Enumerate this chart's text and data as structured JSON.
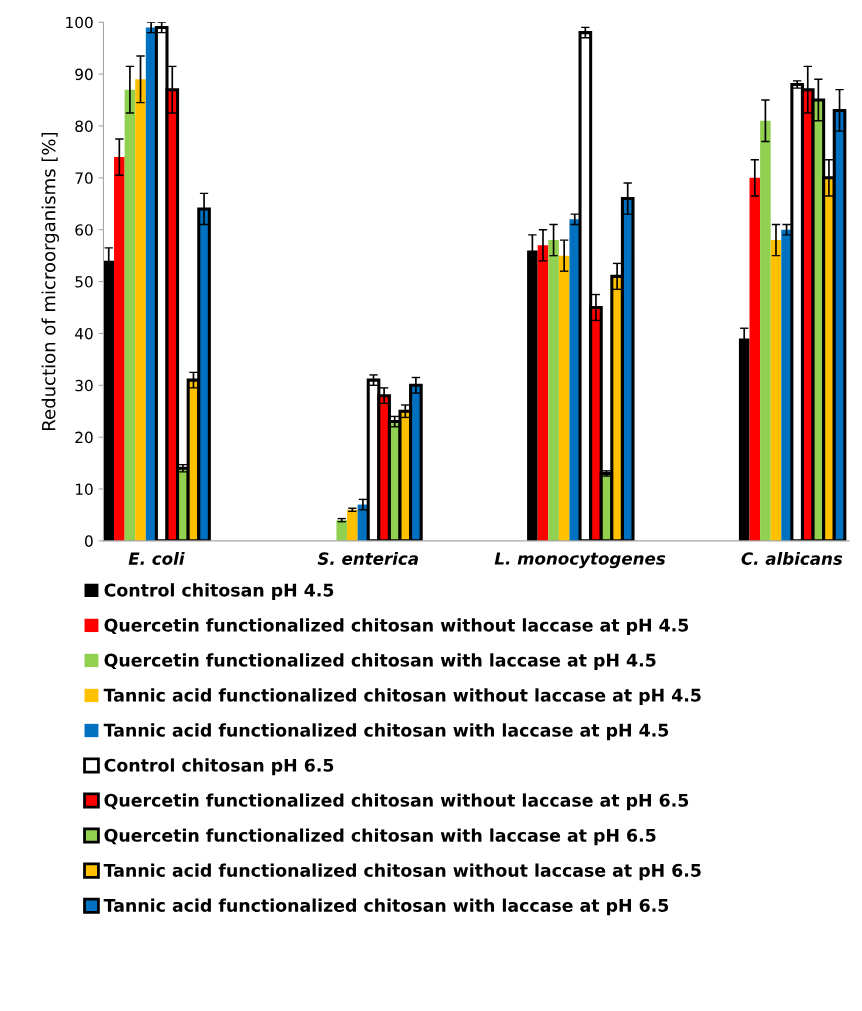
{
  "chart_data": {
    "type": "bar",
    "ylabel": "Reduction of microorganisms [%]",
    "categories": [
      "E. coli",
      "S. enterica",
      "L. monocytogenes",
      "C. albicans"
    ],
    "ylim": [
      0,
      100
    ],
    "yticks": [
      0,
      10,
      20,
      30,
      40,
      50,
      60,
      70,
      80,
      90,
      100
    ],
    "grid": false,
    "legend": "bottom",
    "series": [
      {
        "name": "Control chitosan pH 4.5",
        "color": "#000000",
        "values": [
          54,
          0,
          56,
          39
        ],
        "errors": [
          2.5,
          null,
          3,
          2
        ]
      },
      {
        "name": "Quercetin functionalized chitosan without laccase at pH 4.5",
        "color": "#ff0000",
        "values": [
          74,
          0,
          57,
          70
        ],
        "errors": [
          3.5,
          null,
          3,
          3.5
        ]
      },
      {
        "name": "Quercetin functionalized chitosan with laccase at pH 4.5",
        "color": "#92d050",
        "values": [
          87,
          4,
          58,
          81
        ],
        "errors": [
          4.5,
          0.3,
          3,
          4
        ]
      },
      {
        "name": "Tannic acid functionalized chitosan without laccase at pH 4.5",
        "color": "#ffc000",
        "values": [
          89,
          6,
          55,
          58
        ],
        "errors": [
          4.5,
          0.3,
          3,
          3
        ]
      },
      {
        "name": "Tannic acid functionalized chitosan with laccase at pH 4.5",
        "color": "#0070c0",
        "values": [
          99,
          7,
          62,
          60
        ],
        "errors": [
          1,
          1,
          1,
          1
        ]
      },
      {
        "name": "Control chitosan pH 6.5",
        "color": "#ffffff",
        "values": [
          99,
          31,
          98,
          88
        ],
        "errors": [
          1,
          1,
          1,
          0.7
        ]
      },
      {
        "name": "Quercetin functionalized chitosan without laccase at pH 6.5",
        "color": "#ff0000",
        "values": [
          87,
          28,
          45,
          87
        ],
        "errors": [
          4.5,
          1.5,
          2.5,
          4.5
        ]
      },
      {
        "name": "Quercetin functionalized chitosan with laccase at pH 6.5",
        "color": "#92d050",
        "values": [
          14,
          23,
          13,
          85
        ],
        "errors": [
          0.7,
          1,
          0.5,
          4
        ]
      },
      {
        "name": "Tannic acid functionalized chitosan without laccase at pH 6.5",
        "color": "#ffc000",
        "values": [
          31,
          25,
          51,
          70
        ],
        "errors": [
          1.5,
          1.2,
          2.5,
          3.5
        ]
      },
      {
        "name": "Tannic acid functionalized chitosan with laccase at pH 6.5",
        "color": "#0070c0",
        "values": [
          64,
          30,
          66,
          83
        ],
        "errors": [
          3,
          1.5,
          3,
          4
        ]
      }
    ]
  }
}
